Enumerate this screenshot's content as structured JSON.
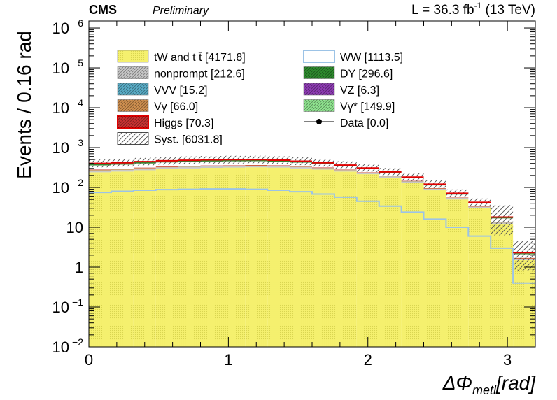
{
  "header": {
    "experiment": "CMS",
    "status": "Preliminary",
    "lumi_prefix": "L = 36.3 fb",
    "lumi_exp": "-1",
    "lumi_suffix": " (13 TeV)"
  },
  "chart_data": {
    "type": "histogram-stacked",
    "ylabel": "Events / 0.16 rad",
    "xlabel_symbol": "ΔΦ",
    "xlabel_sub": "metl",
    "xlabel_unit": "[rad]",
    "xlim": [
      0,
      3.2
    ],
    "ylim": [
      0.01,
      1500000
    ],
    "yscale": "log",
    "legend_position": "top",
    "x_ticks": [
      {
        "value": 0,
        "label": "0"
      },
      {
        "value": 1,
        "label": "1"
      },
      {
        "value": 2,
        "label": "2"
      },
      {
        "value": 3,
        "label": "3"
      }
    ],
    "y_ticks": [
      {
        "value": 0.01,
        "base": "10",
        "exp": "−2"
      },
      {
        "value": 0.1,
        "base": "10",
        "exp": "−1"
      },
      {
        "value": 1,
        "base": "1",
        "exp": ""
      },
      {
        "value": 10,
        "base": "10",
        "exp": ""
      },
      {
        "value": 100,
        "base": "10",
        "exp": "2"
      },
      {
        "value": 1000,
        "base": "10",
        "exp": "3"
      },
      {
        "value": 10000,
        "base": "10",
        "exp": "4"
      },
      {
        "value": 100000,
        "base": "10",
        "exp": "5"
      },
      {
        "value": 1000000,
        "base": "10",
        "exp": "6"
      }
    ],
    "bin_edges": [
      0,
      0.16,
      0.32,
      0.48,
      0.64,
      0.8,
      0.96,
      1.12,
      1.28,
      1.44,
      1.6,
      1.76,
      1.92,
      2.08,
      2.24,
      2.4,
      2.56,
      2.72,
      2.88,
      3.04,
      3.2
    ],
    "series": [
      {
        "name": "tW and t t̄",
        "yield": "4171.8",
        "color": "#f5f06e",
        "values": [
          240,
          250,
          270,
          290,
          300,
          310,
          315,
          320,
          315,
          300,
          280,
          250,
          215,
          175,
          130,
          85,
          50,
          30,
          12,
          1.5
        ]
      },
      {
        "name": "nonprompt",
        "yield": "212.6",
        "color": "#c8c8c8",
        "values": [
          25,
          26,
          27,
          28,
          28,
          28,
          28,
          27,
          26,
          24,
          22,
          19,
          16,
          13,
          10,
          7,
          4,
          2.5,
          1,
          0.1
        ]
      },
      {
        "name": "VVV",
        "yield": "15.2",
        "color": "#5aaec8",
        "values": [
          2,
          2,
          2,
          2,
          2,
          2,
          2,
          2,
          2,
          2,
          1.5,
          1.5,
          1,
          1,
          1,
          0.5,
          0.3,
          0.2,
          0.1,
          0.01
        ]
      },
      {
        "name": "Vγ",
        "yield": "66.0",
        "color": "#d09050",
        "values": [
          8,
          8,
          8,
          8,
          8,
          8,
          8,
          8,
          7,
          7,
          6,
          5,
          4,
          3,
          2.5,
          2,
          1,
          0.5,
          0.3,
          0.05
        ]
      },
      {
        "name": "Higgs",
        "yield": "70.3",
        "color": "#c83232",
        "line_color": "#e00000",
        "values": [
          7,
          7,
          8,
          8,
          8,
          8,
          8,
          8,
          8,
          8,
          7,
          6,
          5,
          4,
          3,
          2,
          1,
          0.5,
          0.3,
          0.05
        ]
      },
      {
        "name": "WW",
        "yield": "1113.5",
        "color": "#ffffff",
        "line_color": "#9cc3e6",
        "values": [
          75,
          80,
          85,
          88,
          90,
          92,
          92,
          90,
          85,
          78,
          68,
          57,
          45,
          34,
          24,
          16,
          10,
          6,
          3,
          0.4
        ]
      },
      {
        "name": "DY",
        "yield": "296.6",
        "color": "#2e8b2e",
        "values": [
          30,
          30,
          30,
          30,
          30,
          30,
          30,
          29,
          27,
          24,
          20,
          16,
          13,
          10,
          7,
          5,
          3,
          1.5,
          0.8,
          0.1
        ]
      },
      {
        "name": "VZ",
        "yield": "6.3",
        "color": "#8e3cb4",
        "values": [
          0.8,
          0.8,
          0.8,
          0.8,
          0.8,
          0.8,
          0.7,
          0.7,
          0.6,
          0.5,
          0.5,
          0.4,
          0.3,
          0.2,
          0.2,
          0.1,
          0.1,
          0.05,
          0.02,
          0.005
        ]
      },
      {
        "name": "Vγ*",
        "yield": "149.9",
        "color": "#90e490",
        "values": [
          13,
          13,
          13,
          13,
          14,
          14,
          14,
          13,
          12,
          11,
          10,
          8,
          7,
          5,
          4,
          3,
          2,
          1,
          0.5,
          0.1
        ]
      }
    ],
    "syst": {
      "name": "Syst.",
      "yield": "6031.8"
    },
    "data": {
      "name": "Data",
      "yield": "0.0"
    }
  }
}
